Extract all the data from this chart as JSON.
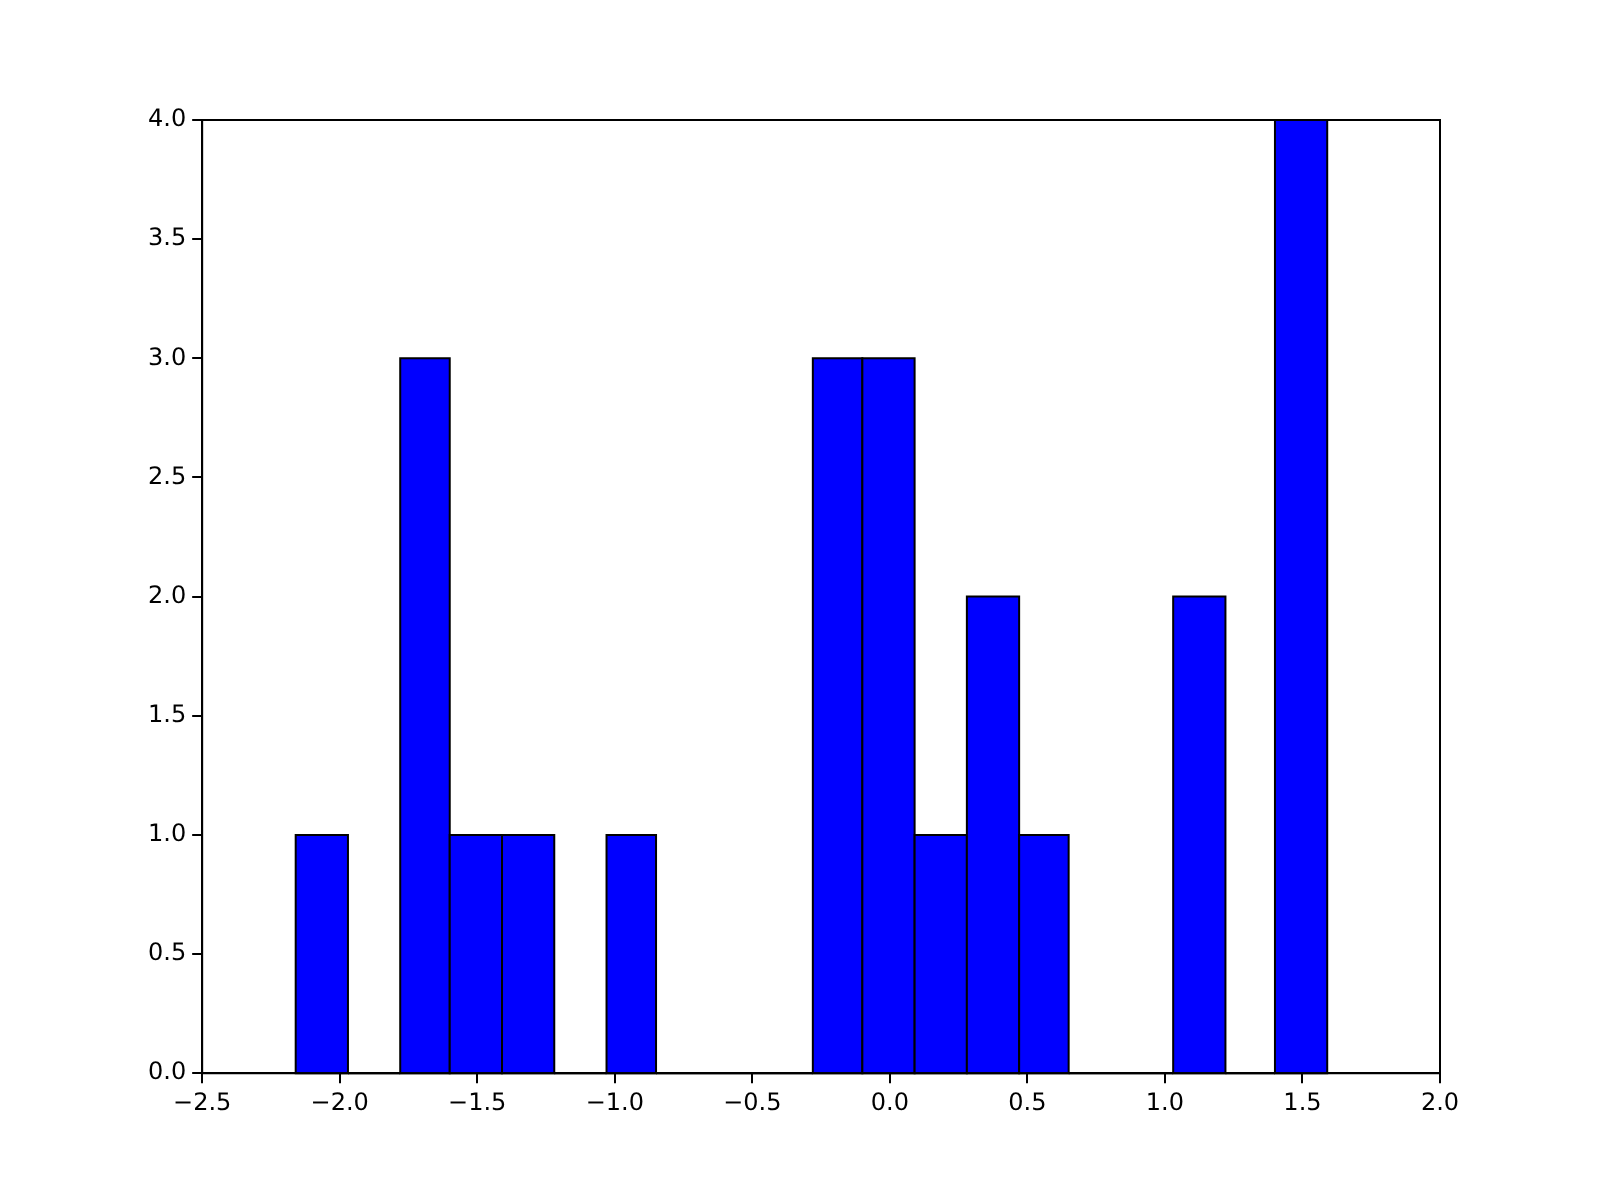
{
  "chart_data": {
    "type": "histogram",
    "bins": [
      -2.16,
      -1.97,
      -1.78,
      -1.6,
      -1.41,
      -1.22,
      -1.03,
      -0.85,
      -0.28,
      -0.1,
      0.09,
      0.28,
      0.47,
      0.65,
      1.03,
      1.22,
      1.4,
      1.59
    ],
    "values": [
      1,
      0,
      3,
      1,
      1,
      0,
      1,
      0,
      3,
      3,
      1,
      2,
      1,
      0,
      2,
      0,
      4
    ],
    "color": "#0000ff",
    "xlim": [
      -2.5,
      2.0
    ],
    "xticks": [
      {
        "value": -2.5,
        "label": "−2.5"
      },
      {
        "value": -2.0,
        "label": "−2.0"
      },
      {
        "value": -1.5,
        "label": "−1.5"
      },
      {
        "value": -1.0,
        "label": "−1.0"
      },
      {
        "value": -0.5,
        "label": "−0.5"
      },
      {
        "value": 0,
        "label": "0.0"
      },
      {
        "value": 0.5,
        "label": "0.5"
      },
      {
        "value": 1.0,
        "label": "1.0"
      },
      {
        "value": 1.5,
        "label": "1.5"
      },
      {
        "value": 2.0,
        "label": "2.0"
      }
    ],
    "ylim": [
      0,
      4
    ],
    "yticks": [
      {
        "value": 0,
        "label": "0.0"
      },
      {
        "value": 0.5,
        "label": "0.5"
      },
      {
        "value": 1.0,
        "label": "1.0"
      },
      {
        "value": 1.5,
        "label": "1.5"
      },
      {
        "value": 2.0,
        "label": "2.0"
      },
      {
        "value": 2.5,
        "label": "2.5"
      },
      {
        "value": 3.0,
        "label": "3.0"
      },
      {
        "value": 3.5,
        "label": "3.5"
      },
      {
        "value": 4.0,
        "label": "4.0"
      }
    ]
  }
}
